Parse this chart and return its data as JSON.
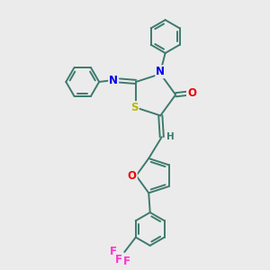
{
  "bg_color": "#ebebeb",
  "bond_color": "#3d7a6e",
  "bond_lw": 1.4,
  "dbo": 0.06,
  "atom_colors": {
    "S": "#b8b800",
    "N": "#0000ee",
    "O_carbonyl": "#ee0000",
    "O_furan": "#ee0000",
    "F": "#ff33cc",
    "H": "#3d7a6e",
    "C": "#3d7a6e"
  },
  "font_size": 8.5,
  "ring6_r": 0.62,
  "ring6_dbo": 0.1
}
